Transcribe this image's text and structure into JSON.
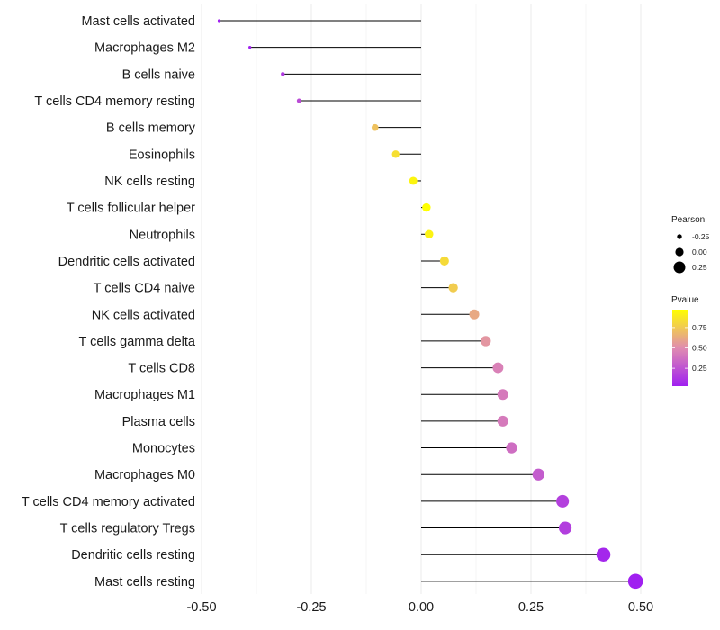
{
  "chart_data": {
    "type": "lollipop",
    "title": "",
    "xlabel": "",
    "ylabel": "",
    "xlim": [
      -0.5,
      0.5
    ],
    "x_ticks": [
      -0.5,
      -0.25,
      0.0,
      0.25,
      0.5
    ],
    "x_tick_labels": [
      "-0.50",
      "-0.25",
      "0.00",
      "0.25",
      "0.50"
    ],
    "grid": true,
    "categories": [
      "Mast cells activated",
      "Macrophages M2",
      "B cells naive",
      "T cells CD4 memory resting",
      "B cells memory",
      "Eosinophils",
      "NK cells resting",
      "T cells follicular helper",
      "Neutrophils",
      "Dendritic cells activated",
      "T cells CD4 naive",
      "NK cells activated",
      "T cells gamma delta",
      "T cells CD8",
      "Macrophages M1",
      "Plasma cells",
      "Monocytes",
      "Macrophages M0",
      "T cells CD4 memory activated",
      "T cells regulatory  Tregs ",
      "Dendritic cells resting",
      "Mast cells resting"
    ],
    "pearson": [
      -0.46,
      -0.39,
      -0.315,
      -0.278,
      -0.105,
      -0.058,
      -0.018,
      0.012,
      0.018,
      0.053,
      0.073,
      0.121,
      0.147,
      0.175,
      0.186,
      0.186,
      0.206,
      0.267,
      0.322,
      0.328,
      0.415,
      0.488
    ],
    "pvalue": [
      0.03,
      0.04,
      0.14,
      0.22,
      0.72,
      0.84,
      0.93,
      0.97,
      0.92,
      0.82,
      0.76,
      0.62,
      0.54,
      0.45,
      0.42,
      0.42,
      0.37,
      0.29,
      0.17,
      0.16,
      0.06,
      0.03
    ],
    "legend": {
      "size": {
        "title": "Pearson",
        "values": [
          -0.25,
          0.0,
          0.25
        ],
        "labels": [
          "-0.25",
          "0.00",
          "0.25"
        ]
      },
      "color": {
        "title": "Pvalue",
        "range": [
          0.03,
          0.97
        ],
        "breaks": [
          0.25,
          0.5,
          0.75
        ],
        "labels": [
          "0.25",
          "0.50",
          "0.75"
        ],
        "low_color": "#a020f0",
        "high_color": "#ffff00"
      }
    }
  }
}
